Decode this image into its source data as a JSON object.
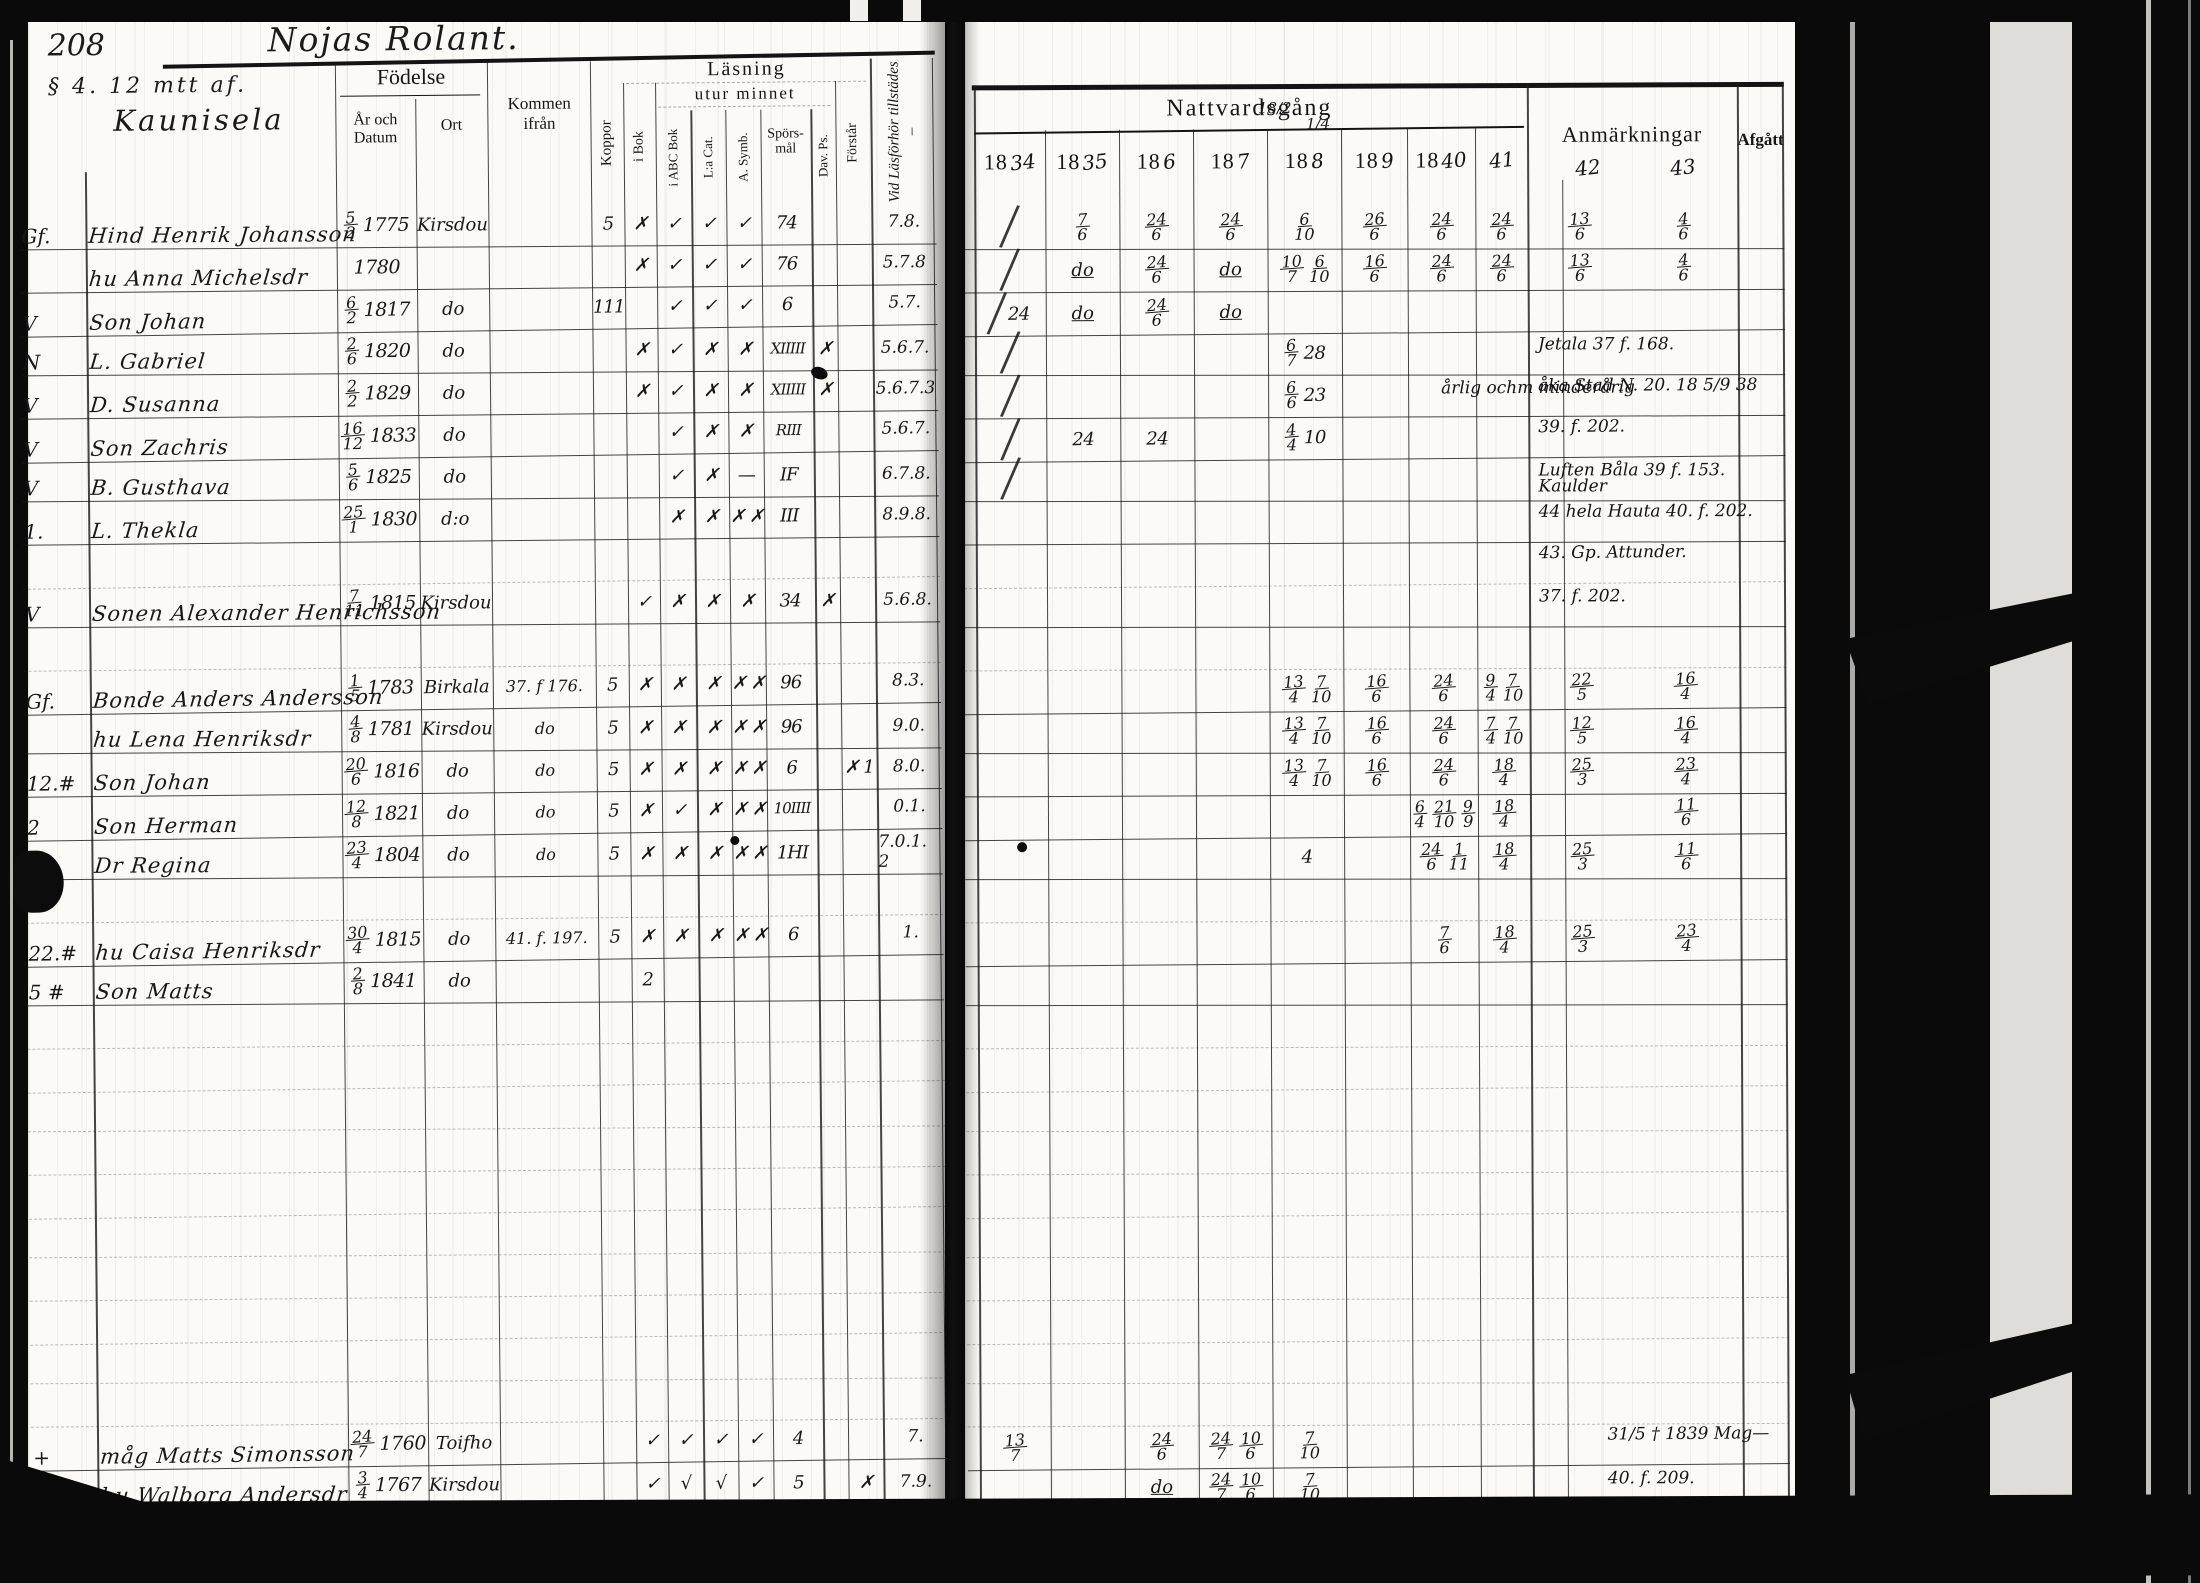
{
  "left": {
    "page_number": "208",
    "title_script": "Nojas Rolant.",
    "sub_script": "§ 4. 12 mtt af.",
    "farm_name": "Kaunisela",
    "headers": {
      "fodelse": "Födelse",
      "ar_och_datum": "År och Datum",
      "ort": "Ort",
      "kommen_ifran": "Kommen ifrån",
      "koppor": "Koppor",
      "i_bok": "i Bok",
      "lasning": "Läsning",
      "utur_minnet": "utur minnet",
      "abc_bok": "i ABC Bok",
      "la_cat": "L:a Cat.",
      "symb": "A. Symb.",
      "sporsmal": "Spörs- mål",
      "dav_ps": "Dav. Ps.",
      "forstar": "Förstår",
      "vid_lasforhor": "Vid Läsförhör tillstädes –"
    }
  },
  "right": {
    "headers": {
      "nattvardsgang": "Nattvardsgång",
      "anmarkningar": "Anmärkningar",
      "afgatt": "Afgått",
      "scribble_1": "18/2",
      "scribble_2": "1/4",
      "years": [
        {
          "p": "18",
          "s": "34"
        },
        {
          "p": "18",
          "s": "35"
        },
        {
          "p": "18",
          "s": "6"
        },
        {
          "p": "18",
          "s": "7"
        },
        {
          "p": "18",
          "s": "8"
        },
        {
          "p": "18",
          "s": "9"
        },
        {
          "p": "18",
          "s": "40"
        },
        {
          "p": "",
          "s": "41"
        },
        {
          "p": "",
          "s": "42"
        },
        {
          "p": "",
          "s": "43"
        }
      ]
    }
  },
  "rows": [
    {
      "m": "Gf.",
      "n": "Hind Henrik Johansson",
      "bf": "5/2",
      "by": "1775",
      "ort": "Kirsdou",
      "kom": "",
      "marks": [
        "5",
        "✗",
        "✓",
        "✓",
        "✓",
        "74",
        "",
        ""
      ],
      "fh": "7.8.",
      "com": [
        "∕",
        "7/6",
        "24/6",
        "24/6",
        "6/10",
        "26/6",
        "24/6",
        "24/6",
        "13/6",
        "4/6"
      ],
      "anm": "",
      "afg": ""
    },
    {
      "m": "",
      "n": "hu Anna Michelsdr",
      "bf": "",
      "by": "1780",
      "ort": "",
      "kom": "",
      "marks": [
        "",
        "✗",
        "✓",
        "✓",
        "✓",
        "76",
        "",
        ""
      ],
      "fh": "5.7.8",
      "com": [
        "∕",
        "do",
        "24/6",
        "do",
        "10/7 6/10",
        "16/6",
        "24/6",
        "24/6",
        "13/6",
        "4/6"
      ],
      "anm": "",
      "afg": ""
    },
    {
      "m": "V",
      "n": "Son Johan",
      "bf": "6/2",
      "by": "1817",
      "ort": "do",
      "kom": "",
      "marks": [
        "111",
        "",
        "✓",
        "✓",
        "✓",
        "6",
        "",
        ""
      ],
      "fh": "5.7.",
      "com": [
        "∕ 24",
        "do",
        "24/6",
        "do",
        "",
        "",
        "",
        "",
        "",
        ""
      ],
      "anm": "",
      "afg": ""
    },
    {
      "m": "N",
      "n": "L. Gabriel",
      "bf": "2/6",
      "by": "1820",
      "ort": "do",
      "kom": "",
      "marks": [
        "",
        "✗",
        "✓",
        "✗",
        "✗",
        "XIIIII",
        "✗",
        ""
      ],
      "fh": "5.6.7.",
      "com": [
        "∕",
        "",
        "",
        "",
        "6/7 28",
        "",
        "",
        "",
        "",
        ""
      ],
      "anm": "",
      "afg": "Jetala 37 f. 168."
    },
    {
      "m": "V",
      "n": "D. Susanna",
      "bf": "2/2",
      "by": "1829",
      "ort": "do",
      "kom": "",
      "marks": [
        "",
        "✗",
        "✓",
        "✗",
        "✗",
        "XIIIII",
        "✗",
        ""
      ],
      "fh": "5.6.7.3",
      "com": [
        "∕",
        "",
        "",
        "",
        "6/6 23",
        "",
        "",
        "",
        "",
        ""
      ],
      "anm": "årlig ochm minderårig",
      "afg": "åka Stad N. 20.  18 5/9 38"
    },
    {
      "m": "V",
      "n": "Son Zachris",
      "bf": "16/12",
      "by": "1833",
      "ort": "do",
      "kom": "",
      "marks": [
        "",
        "",
        "✓",
        "✗",
        "✗",
        "RIII",
        "",
        ""
      ],
      "fh": "5.6.7.",
      "com": [
        "∕",
        "24",
        "24",
        "",
        "4/4 10",
        "",
        "",
        "",
        "",
        ""
      ],
      "anm": "",
      "afg": "39. f. 202."
    },
    {
      "m": "V",
      "n": "B. Gusthava",
      "bf": "5/6",
      "by": "1825",
      "ort": "do",
      "kom": "",
      "marks": [
        "",
        "",
        "✓",
        "✗",
        "—",
        "IF",
        "",
        ""
      ],
      "fh": "6.7.8.",
      "com": [
        "∕",
        "",
        "",
        "",
        "",
        "",
        "",
        "",
        "",
        ""
      ],
      "anm": "",
      "afg": "Luften Båla 39 f. 153. Kaulder"
    },
    {
      "m": "1.",
      "n": "L. Thekla",
      "bf": "25/1",
      "by": "1830",
      "ort": "d:o",
      "kom": "",
      "marks": [
        "",
        "",
        "✗",
        "✗",
        "✗ ✗",
        "III",
        "",
        ""
      ],
      "fh": "8.9.8.",
      "com": [
        "",
        "",
        "",
        "",
        "",
        "",
        "",
        "",
        "",
        ""
      ],
      "anm": "",
      "afg": "44 hela Hauta 40. f. 202."
    },
    {
      "blank": true,
      "afg": "43. Gp. Attunder."
    },
    {
      "m": "V",
      "n": "Sonen Alexander Henrichsson",
      "bf": "7/11",
      "by": "1815",
      "ort": "Kirsdou",
      "kom": "",
      "marks": [
        "",
        "✓",
        "✗",
        "✗",
        "✗",
        "34",
        "✗",
        ""
      ],
      "fh": "5.6.8.",
      "com": [
        "",
        "",
        "",
        "",
        "",
        "",
        "",
        "",
        "",
        ""
      ],
      "anm": "",
      "afg": "37. f. 202."
    },
    {
      "blank": true
    },
    {
      "m": "Gf.",
      "n": "Bonde Anders Andersson",
      "bf": "1/5",
      "by": "1783",
      "ort": "Birkala",
      "kom": "37. f 176.",
      "marks": [
        "5",
        "✗",
        "✗",
        "✗",
        "✗ ✗",
        "96",
        "",
        ""
      ],
      "fh": "8.3.",
      "com": [
        "",
        "",
        "",
        "",
        "13/4 7/10",
        "16/6",
        "24/6",
        "9/4 7/10",
        "22/5",
        "16/4"
      ],
      "anm": "",
      "afg": ""
    },
    {
      "m": "",
      "n": "hu Lena Henriksdr",
      "bf": "4/8",
      "by": "1781",
      "ort": "Kirsdou",
      "kom": "do",
      "marks": [
        "5",
        "✗",
        "✗",
        "✗",
        "✗ ✗",
        "96",
        "",
        ""
      ],
      "fh": "9.0.",
      "com": [
        "",
        "",
        "",
        "",
        "13/4 7/10",
        "16/6",
        "24/6",
        "7/4 7/10",
        "12/5",
        "16/4"
      ],
      "anm": "",
      "afg": ""
    },
    {
      "m": "12.#",
      "n": "Son Johan",
      "bf": "20/6",
      "by": "1816",
      "ort": "do",
      "kom": "do",
      "marks": [
        "5",
        "✗",
        "✗",
        "✗",
        "✗ ✗",
        "6",
        "",
        "✗ 1"
      ],
      "fh": "8.0.",
      "com": [
        "",
        "",
        "",
        "",
        "13/4 7/10",
        "16/6",
        "24/6",
        "18/4",
        "25/3",
        "23/4"
      ],
      "anm": "",
      "afg": ""
    },
    {
      "m": "2",
      "n": "Son Herman",
      "bf": "12/8",
      "by": "1821",
      "ort": "do",
      "kom": "do",
      "marks": [
        "5",
        "✗",
        "✓",
        "✗",
        "✗ ✗",
        "10IIII",
        "",
        ""
      ],
      "fh": "0.1.",
      "com": [
        "",
        "",
        "",
        "",
        "",
        "",
        "6/4 21/10 9/9",
        "18/4",
        "",
        "11/6"
      ],
      "anm": "",
      "afg": ""
    },
    {
      "m": "1.",
      "n": "Dr Regina",
      "bf": "23/4",
      "by": "1804",
      "ort": "do",
      "kom": "do",
      "marks": [
        "5",
        "✗",
        "✗",
        "✗",
        "✗ ✗",
        "1HI",
        "",
        ""
      ],
      "fh": "7.0.1. 2",
      "com": [
        "",
        "",
        "",
        "",
        "4",
        "",
        "24/6 1/11",
        "18/4",
        "25/3",
        "11/6"
      ],
      "anm": "",
      "afg": ""
    },
    {
      "blank": true
    },
    {
      "m": "22.#",
      "n": "hu Caisa Henriksdr",
      "bf": "30/4",
      "by": "1815",
      "ort": "do",
      "kom": "41. f. 197.",
      "marks": [
        "5",
        "✗",
        "✗",
        "✗",
        "✗ ✗",
        "6",
        "",
        ""
      ],
      "fh": "1.",
      "com": [
        "",
        "",
        "",
        "",
        "",
        "",
        "7/6",
        "18/4",
        "25/3",
        "23/4"
      ],
      "anm": "",
      "afg": ""
    },
    {
      "m": "5 #",
      "n": "Son Matts",
      "bf": "2/8",
      "by": "1841",
      "ort": "do",
      "kom": "",
      "marks": [
        "",
        "2",
        "",
        "",
        "",
        "",
        "",
        ""
      ],
      "fh": "",
      "com": [
        "",
        "",
        "",
        "",
        "",
        "",
        "",
        "",
        "",
        ""
      ],
      "anm": "",
      "afg": ""
    },
    {
      "blank": true
    },
    {
      "blank": true
    },
    {
      "blank": true
    },
    {
      "blank": true
    },
    {
      "blank": true
    },
    {
      "blank": true
    },
    {
      "blank": true
    },
    {
      "blank": true
    },
    {
      "blank": true
    },
    {
      "blank": true
    },
    {
      "m": "+",
      "n": "måg Matts Simonsson",
      "bf": "24/7",
      "by": "1760",
      "ort": "Toifho",
      "kom": "",
      "marks": [
        "",
        "✓",
        "✓",
        "✓",
        "✓",
        "4",
        "",
        ""
      ],
      "fh": "7.",
      "com": [
        "13/7",
        "",
        "24/6",
        "24/7 10/6",
        "7/10",
        "",
        "",
        "",
        "",
        ""
      ],
      "anm": "",
      "afg": "31/5 † 1839 Mag—"
    },
    {
      "m": "V",
      "n": "hu Walborg Andersdr",
      "bf": "3/4",
      "by": "1767",
      "ort": "Kirsdou",
      "kom": "",
      "marks": [
        "",
        "✓",
        "√",
        "√",
        "✓",
        "5",
        "",
        "✗"
      ],
      "fh": "7.9.",
      "com": [
        "",
        "",
        "do",
        "24/7 10/6",
        "7/10",
        "",
        "",
        "",
        "",
        ""
      ],
      "anm": "",
      "afg": "40. f. 209."
    }
  ]
}
